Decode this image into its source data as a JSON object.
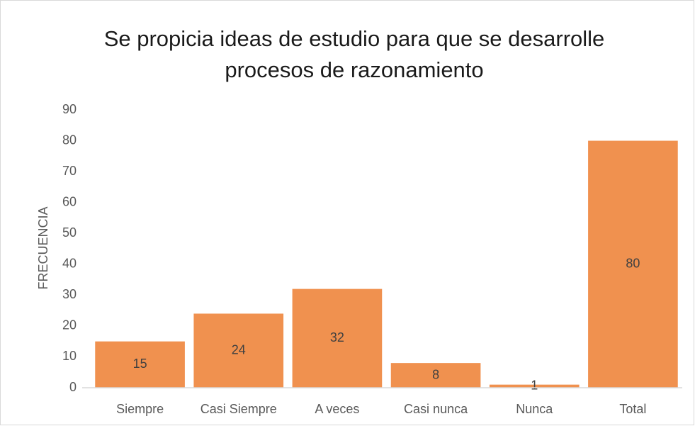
{
  "chart_data": {
    "type": "bar",
    "title": "Se propicia ideas de estudio para que se desarrolle",
    "subtitle": "procesos de razonamiento",
    "y_label": "FRECUENCIA",
    "categories": [
      "Siempre",
      "Casi Siempre",
      "A veces",
      "Casi nunca",
      "Nunca",
      "Total"
    ],
    "values": [
      15,
      24,
      32,
      8,
      1,
      80
    ],
    "color": "#f0914f",
    "ylim": [
      0,
      90
    ],
    "yticks": [
      0,
      10,
      20,
      30,
      40,
      50,
      60,
      70,
      80,
      90
    ],
    "grid": false
  }
}
